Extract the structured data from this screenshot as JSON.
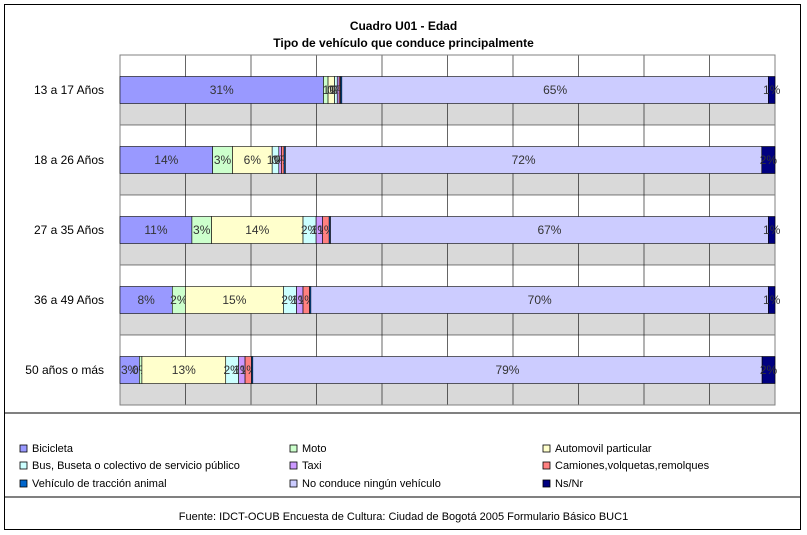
{
  "chart_data": {
    "type": "bar",
    "orientation": "horizontal",
    "stacked": "percent",
    "title": "Cuadro U01 - Edad",
    "subtitle": "Tipo de vehículo que conduce principalmente",
    "categories": [
      "13 a 17 Años",
      "18 a 26 Años",
      "27 a 35 Años",
      "36 a 49 Años",
      "50 años o más"
    ],
    "xlim": [
      0,
      100
    ],
    "grid": true,
    "legend_position": "bottom",
    "series": [
      {
        "name": "Bicicleta",
        "color": "#9999ff",
        "values": [
          31,
          14,
          11,
          8,
          3
        ],
        "labels": [
          "31%",
          "14%",
          "11%",
          "8%",
          "3%"
        ]
      },
      {
        "name": "Moto",
        "color": "#ccffcc",
        "values": [
          0.7,
          3,
          3,
          2,
          0.4
        ],
        "labels": [
          "",
          "3%",
          "3%",
          "2%",
          "0%"
        ]
      },
      {
        "name": "Automovil particular",
        "color": "#ffffcc",
        "values": [
          1,
          6,
          14,
          15,
          13
        ],
        "labels": [
          "1%",
          "6%",
          "14%",
          "15%",
          "13%"
        ]
      },
      {
        "name": "Bus, Buseta o colectivo de servicio público",
        "color": "#ccffff",
        "values": [
          0.4,
          1,
          2,
          2,
          2
        ],
        "labels": [
          "0%",
          "1%",
          "2%",
          "2%",
          "2%"
        ]
      },
      {
        "name": "Taxi",
        "color": "#cc99ff",
        "values": [
          0.3,
          0.4,
          1,
          1,
          1
        ],
        "labels": [
          "0%",
          "0%",
          "1%",
          "1%",
          "1%"
        ]
      },
      {
        "name": "Camiones,volquetas,remolques",
        "color": "#ff8080",
        "values": [
          0.2,
          0.4,
          1,
          1,
          1
        ],
        "labels": [
          "0%",
          "0%",
          "1%",
          "1%",
          "1%"
        ]
      },
      {
        "name": "Vehículo de tracción animal",
        "color": "#0066cc",
        "values": [
          0.2,
          0.2,
          0.2,
          0.2,
          0.2
        ],
        "labels": [
          "",
          "",
          "",
          "",
          ""
        ]
      },
      {
        "name": "No conduce ningún vehículo",
        "color": "#ccccff",
        "values": [
          65,
          72,
          67,
          70,
          79
        ],
        "labels": [
          "65%",
          "72%",
          "67%",
          "70%",
          "79%"
        ]
      },
      {
        "name": "Ns/Nr",
        "color": "#000080",
        "values": [
          1,
          2,
          1,
          1,
          2
        ],
        "labels": [
          "1%",
          "2%",
          "1%",
          "1%",
          "2%"
        ]
      }
    ],
    "source": "Fuente: IDCT-OCUB Encuesta de Cultura: Ciudad de Bogotá 2005 Formulario Básico BUC1"
  }
}
